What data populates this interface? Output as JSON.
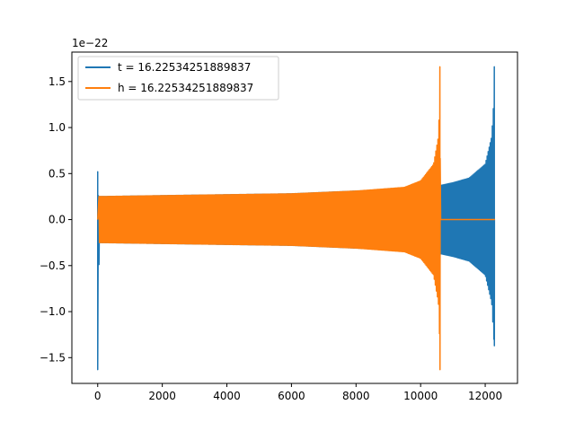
{
  "chart_data": {
    "type": "line",
    "title": "",
    "xlabel": "",
    "ylabel": "",
    "y_offset_label": "1e−22",
    "xlim": [
      -800,
      13000
    ],
    "ylim": [
      -1.78,
      1.82
    ],
    "x_ticks": [
      0,
      2000,
      4000,
      6000,
      8000,
      10000,
      12000
    ],
    "x_tick_labels": [
      "0",
      "2000",
      "4000",
      "6000",
      "8000",
      "10000",
      "12000"
    ],
    "y_ticks": [
      -1.5,
      -1.0,
      -0.5,
      0.0,
      0.5,
      1.0,
      1.5
    ],
    "y_tick_labels": [
      "−1.5",
      "−1.0",
      "−0.5",
      "0.0",
      "0.5",
      "1.0",
      "1.5"
    ],
    "grid": false,
    "legend_position": "top-left",
    "series": [
      {
        "name": "t = 16.22534251889837",
        "color": "#1f77b4",
        "x_range": [
          0,
          12300
        ],
        "envelope": {
          "start_spike_min": -1.63,
          "start_spike_max": 0.52,
          "amplitude_at_x": [
            [
              100,
              0.25
            ],
            [
              2000,
              0.26
            ],
            [
              4000,
              0.27
            ],
            [
              6000,
              0.28
            ],
            [
              8000,
              0.31
            ],
            [
              10000,
              0.34
            ],
            [
              10600,
              0.37
            ],
            [
              11000,
              0.4
            ],
            [
              11500,
              0.45
            ],
            [
              12000,
              0.6
            ],
            [
              12200,
              0.9
            ],
            [
              12280,
              1.37
            ]
          ],
          "end_spike_max": 1.66,
          "end_spike_min": -1.37
        }
      },
      {
        "name": "h = 16.22534251889837",
        "color": "#ff7f0e",
        "x_range": [
          0,
          12300
        ],
        "envelope": {
          "amplitude_at_x": [
            [
              100,
              0.25
            ],
            [
              2000,
              0.26
            ],
            [
              4000,
              0.27
            ],
            [
              6000,
              0.28
            ],
            [
              8000,
              0.31
            ],
            [
              9500,
              0.35
            ],
            [
              10000,
              0.42
            ],
            [
              10400,
              0.6
            ],
            [
              10550,
              0.9
            ],
            [
              10600,
              1.4
            ]
          ],
          "end_spike_max": 1.66,
          "end_spike_min": -1.63,
          "end_spike_x": 10600,
          "flat_after_x": 10620,
          "flat_value": 0.0
        }
      }
    ]
  }
}
